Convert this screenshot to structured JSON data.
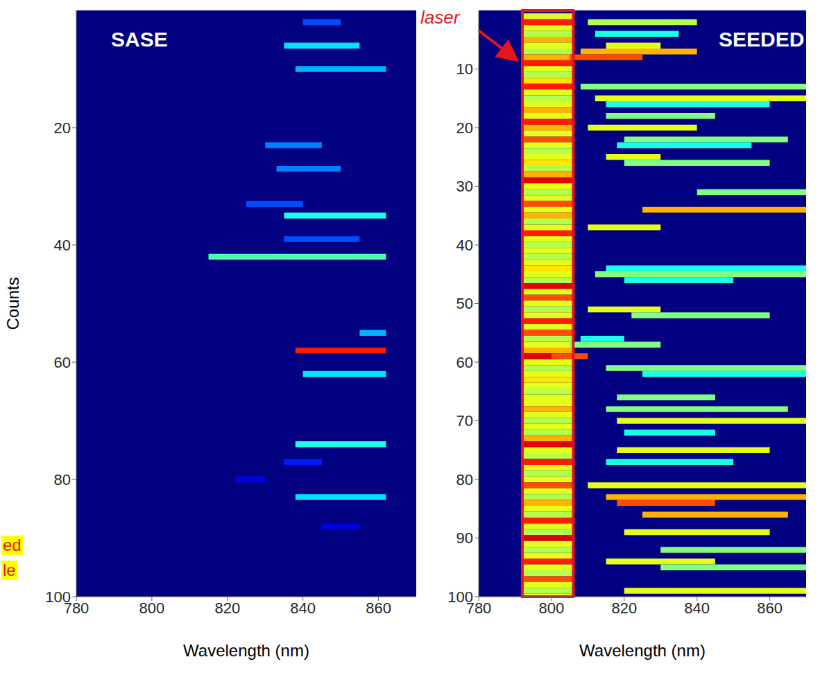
{
  "chart_data": [
    {
      "type": "heatmap",
      "title": "SASE",
      "x_label": "Wavelength (nm)",
      "y_label": "Counts",
      "xlim": [
        780,
        870
      ],
      "xticks": [
        780,
        800,
        820,
        840,
        860
      ],
      "ylim": [
        0,
        100
      ],
      "yticks": [
        20,
        40,
        60,
        80,
        100
      ],
      "grid": false,
      "color_range": [
        0,
        1
      ],
      "annotations": [
        "ed",
        "le"
      ],
      "cells": [
        [
          2,
          840,
          850,
          0.2
        ],
        [
          6,
          835,
          855,
          0.35
        ],
        [
          10,
          838,
          862,
          0.3
        ],
        [
          23,
          830,
          845,
          0.25
        ],
        [
          27,
          833,
          850,
          0.25
        ],
        [
          33,
          825,
          840,
          0.2
        ],
        [
          35,
          835,
          862,
          0.4
        ],
        [
          39,
          835,
          855,
          0.2
        ],
        [
          42,
          815,
          862,
          0.45
        ],
        [
          55,
          855,
          862,
          0.3
        ],
        [
          58,
          838,
          862,
          0.85
        ],
        [
          62,
          840,
          862,
          0.35
        ],
        [
          74,
          838,
          862,
          0.4
        ],
        [
          77,
          835,
          845,
          0.15
        ],
        [
          80,
          822,
          830,
          0.1
        ],
        [
          83,
          838,
          862,
          0.35
        ],
        [
          88,
          845,
          855,
          0.1
        ]
      ]
    },
    {
      "type": "heatmap",
      "title": "SEEDED",
      "x_label": "Wavelength (nm)",
      "xlim": [
        780,
        870
      ],
      "xticks": [
        780,
        800,
        820,
        840,
        860
      ],
      "ylim": [
        0,
        100
      ],
      "yticks": [
        10,
        20,
        30,
        40,
        50,
        60,
        70,
        80,
        90,
        100
      ],
      "grid": false,
      "color_range": [
        0,
        1
      ],
      "band": {
        "label": "laser",
        "x": [
          792,
          806
        ],
        "values": [
          0.6,
          0.85,
          0.6,
          0.55,
          0.7,
          0.6,
          0.55,
          0.7,
          0.85,
          0.6,
          0.55,
          0.65,
          0.85,
          0.6,
          0.55,
          0.6,
          0.7,
          0.6,
          0.85,
          0.7,
          0.6,
          0.8,
          0.6,
          0.55,
          0.6,
          0.65,
          0.55,
          0.7,
          0.9,
          0.6,
          0.55,
          0.6,
          0.8,
          0.6,
          0.7,
          0.55,
          0.6,
          0.85,
          0.6,
          0.55,
          0.6,
          0.55,
          0.6,
          0.65,
          0.6,
          0.55,
          0.9,
          0.6,
          0.8,
          0.6,
          0.55,
          0.6,
          0.85,
          0.6,
          0.8,
          0.55,
          0.6,
          0.7,
          0.9,
          0.6,
          0.55,
          0.6,
          0.65,
          0.6,
          0.55,
          0.6,
          0.6,
          0.7,
          0.6,
          0.55,
          0.6,
          0.55,
          0.7,
          0.9,
          0.6,
          0.55,
          0.85,
          0.6,
          0.55,
          0.6,
          0.8,
          0.6,
          0.55,
          0.7,
          0.6,
          0.55,
          0.85,
          0.6,
          0.55,
          0.9,
          0.6,
          0.55,
          0.6,
          0.85,
          0.6,
          0.55,
          0.8,
          0.6,
          0.55,
          0.6
        ]
      },
      "cells": [
        [
          2,
          810,
          840,
          0.55
        ],
        [
          4,
          812,
          835,
          0.4
        ],
        [
          6,
          815,
          830,
          0.6
        ],
        [
          7,
          808,
          840,
          0.7
        ],
        [
          8,
          805,
          825,
          0.8
        ],
        [
          13,
          808,
          870,
          0.5
        ],
        [
          15,
          812,
          870,
          0.6
        ],
        [
          16,
          815,
          860,
          0.4
        ],
        [
          18,
          815,
          845,
          0.5
        ],
        [
          20,
          810,
          840,
          0.6
        ],
        [
          22,
          820,
          865,
          0.5
        ],
        [
          23,
          818,
          855,
          0.4
        ],
        [
          25,
          815,
          830,
          0.6
        ],
        [
          26,
          820,
          860,
          0.5
        ],
        [
          31,
          840,
          870,
          0.5
        ],
        [
          34,
          825,
          870,
          0.7
        ],
        [
          37,
          810,
          830,
          0.6
        ],
        [
          44,
          815,
          870,
          0.4
        ],
        [
          45,
          812,
          870,
          0.5
        ],
        [
          46,
          820,
          850,
          0.4
        ],
        [
          51,
          810,
          830,
          0.6
        ],
        [
          52,
          822,
          860,
          0.5
        ],
        [
          56,
          808,
          820,
          0.4
        ],
        [
          57,
          805,
          830,
          0.5
        ],
        [
          59,
          800,
          810,
          0.8
        ],
        [
          61,
          815,
          870,
          0.5
        ],
        [
          62,
          825,
          870,
          0.4
        ],
        [
          66,
          818,
          845,
          0.5
        ],
        [
          68,
          815,
          865,
          0.5
        ],
        [
          70,
          818,
          870,
          0.6
        ],
        [
          72,
          820,
          845,
          0.4
        ],
        [
          75,
          818,
          860,
          0.6
        ],
        [
          77,
          815,
          850,
          0.4
        ],
        [
          81,
          810,
          870,
          0.6
        ],
        [
          83,
          815,
          870,
          0.7
        ],
        [
          84,
          818,
          845,
          0.8
        ],
        [
          86,
          825,
          865,
          0.7
        ],
        [
          89,
          820,
          860,
          0.6
        ],
        [
          92,
          830,
          870,
          0.5
        ],
        [
          94,
          815,
          845,
          0.6
        ],
        [
          95,
          830,
          870,
          0.5
        ],
        [
          99,
          820,
          870,
          0.6
        ]
      ]
    }
  ]
}
